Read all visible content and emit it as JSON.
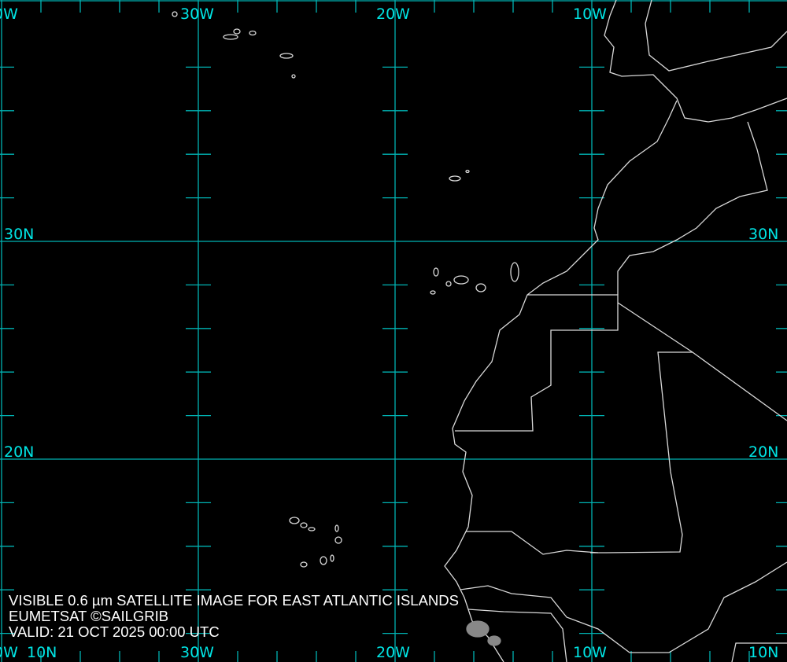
{
  "map": {
    "grid_color": "#00b3b3",
    "label_color": "#00e5e5",
    "coast_color": "#d9d9d9",
    "background": "#000000",
    "top_labels": [
      "0W",
      "30W",
      "20W",
      "10W"
    ],
    "bottom_labels": [
      "0W",
      "30W",
      "20W",
      "10W"
    ],
    "left_labels": [
      "30N",
      "20N",
      "10N"
    ],
    "right_labels": [
      "30N",
      "20N",
      "10N"
    ]
  },
  "caption": {
    "line1": "VISIBLE 0.6 µm SATELLITE IMAGE FOR EAST ATLANTIC ISLANDS",
    "line2": "EUMETSAT ©SAILGRIB",
    "line3": "VALID:  21 OCT 2025 00:00 UTC"
  }
}
